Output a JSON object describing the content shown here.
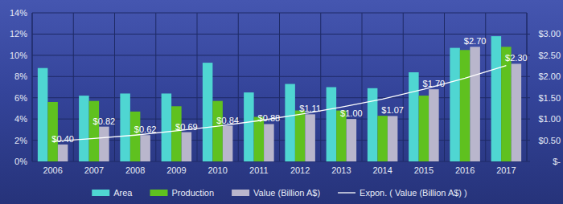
{
  "chart_data": {
    "type": "bar",
    "categories": [
      "2006",
      "2007",
      "2008",
      "2009",
      "2010",
      "2011",
      "2012",
      "2013",
      "2014",
      "2015",
      "2016",
      "2017"
    ],
    "series": [
      {
        "name": "Area",
        "color": "#4fd6d2",
        "values": [
          8.8,
          6.2,
          6.4,
          6.4,
          9.3,
          6.5,
          7.3,
          7.0,
          6.9,
          8.4,
          10.7,
          11.8
        ]
      },
      {
        "name": "Production",
        "color": "#5fc11f",
        "values": [
          5.6,
          5.7,
          4.7,
          5.2,
          5.7,
          4.2,
          4.8,
          4.8,
          4.3,
          6.2,
          10.5,
          10.8
        ]
      },
      {
        "name": "Value (Billion A$)",
        "color": "#b9b6cc",
        "axis": "y2",
        "data_labels": true,
        "values": [
          0.4,
          0.82,
          0.62,
          0.69,
          0.84,
          0.88,
          1.11,
          1.0,
          1.07,
          1.7,
          2.7,
          2.3
        ],
        "value_labels": [
          "$0.40",
          "$0.82",
          "$0.62",
          "$0.69",
          "$0.84",
          "$0.88",
          "$1.11",
          "$1.00",
          "$1.07",
          "$1.70",
          "$2.70",
          "$2.30"
        ]
      },
      {
        "name": "Expon. ( Value (Billion A$) )",
        "color": "#ffffff",
        "axis": "y2",
        "type": "line",
        "line_style": "solid",
        "values": [
          0.47,
          0.54,
          0.62,
          0.72,
          0.83,
          0.96,
          1.11,
          1.28,
          1.47,
          1.7,
          1.96,
          2.26
        ]
      }
    ],
    "ylim": [
      0,
      14
    ],
    "yticks": [
      {
        "value": 0,
        "label": "0%"
      },
      {
        "value": 2,
        "label": "2%"
      },
      {
        "value": 4,
        "label": "4%"
      },
      {
        "value": 6,
        "label": "6%"
      },
      {
        "value": 8,
        "label": "8%"
      },
      {
        "value": 10,
        "label": "10%"
      },
      {
        "value": 12,
        "label": "12%"
      },
      {
        "value": 14,
        "label": "14%"
      }
    ],
    "y2lim": [
      0,
      3.5
    ],
    "y2ticks": [
      {
        "value": 0,
        "label": "$-"
      },
      {
        "value": 0.5,
        "label": "$0.50"
      },
      {
        "value": 1,
        "label": "$1.00"
      },
      {
        "value": 1.5,
        "label": "$1.50"
      },
      {
        "value": 2,
        "label": "$2.00"
      },
      {
        "value": 2.5,
        "label": "$2.50"
      },
      {
        "value": 3,
        "label": "$3.00"
      }
    ],
    "grid": true,
    "legend": "bottom"
  }
}
